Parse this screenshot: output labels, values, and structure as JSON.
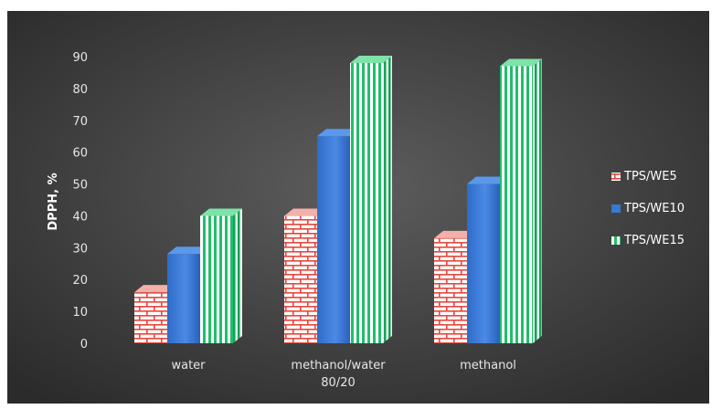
{
  "chart_data": {
    "type": "bar",
    "style": "3d-clustered-column",
    "title": "",
    "xlabel": "",
    "ylabel": "DPPH, %",
    "ylim": [
      0,
      90
    ],
    "yticks": [
      0,
      10,
      20,
      30,
      40,
      50,
      60,
      70,
      80,
      90
    ],
    "grid": false,
    "legend_position": "right",
    "categories": [
      [
        "water"
      ],
      [
        "methanol/water",
        "80/20"
      ],
      [
        "methanol"
      ]
    ],
    "series": [
      {
        "name": "TPS/WE5",
        "values": [
          16,
          40,
          33
        ],
        "pattern": "brick",
        "color": "#e8473d"
      },
      {
        "name": "TPS/WE10",
        "values": [
          28,
          65,
          50
        ],
        "pattern": "solid",
        "color": "#3a78d6"
      },
      {
        "name": "TPS/WE15",
        "values": [
          40,
          88,
          87
        ],
        "pattern": "vertical-stripes",
        "color": "#1fbf6a"
      }
    ],
    "colors": {
      "outer_background": "#ffffff",
      "chart_background_light": "#5d5d5d",
      "chart_background_dark": "#2b2b2b",
      "text": "#e6e6e6"
    }
  }
}
